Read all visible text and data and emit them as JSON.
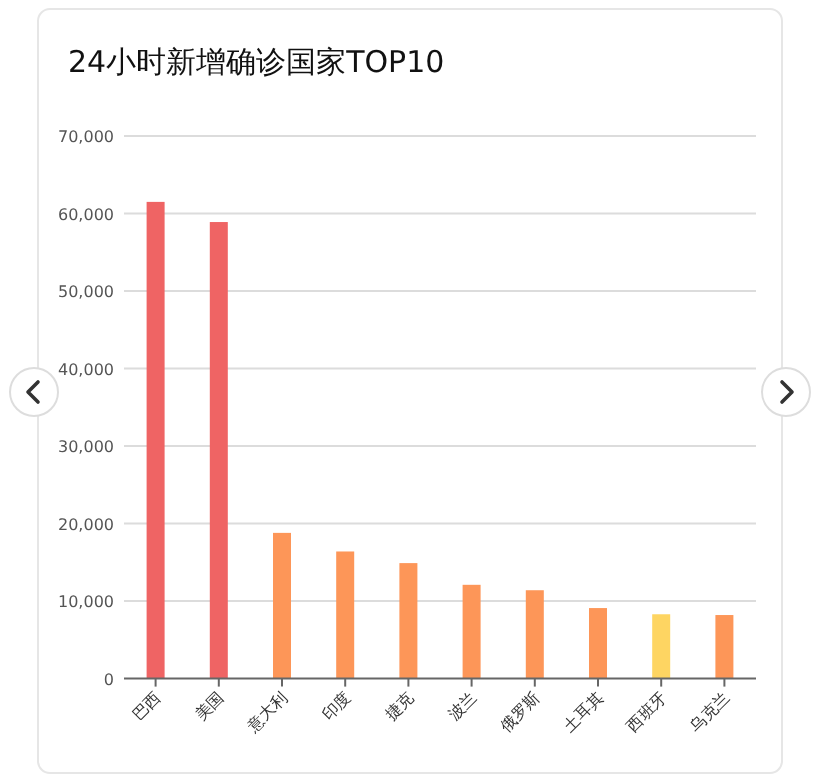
{
  "chart_data": {
    "type": "bar",
    "title": "24小时新增确诊国家TOP10",
    "categories": [
      "巴西",
      "美国",
      "意大利",
      "印度",
      "捷克",
      "波兰",
      "俄罗斯",
      "土耳其",
      "西班牙",
      "乌克兰"
    ],
    "values": [
      61500,
      58900,
      18800,
      16400,
      14900,
      12100,
      11400,
      9100,
      8300,
      8200
    ],
    "colors": [
      "#ef6464",
      "#ef6464",
      "#fd9658",
      "#fd9658",
      "#fd9658",
      "#fd9658",
      "#fd9658",
      "#fd9658",
      "#fed562",
      "#fd9658"
    ],
    "ylim": [
      0,
      70000
    ],
    "yticks": [
      {
        "value": 0,
        "label": "0"
      },
      {
        "value": 10000,
        "label": "10,000"
      },
      {
        "value": 20000,
        "label": "20,000"
      },
      {
        "value": 30000,
        "label": "30,000"
      },
      {
        "value": 40000,
        "label": "40,000"
      },
      {
        "value": 50000,
        "label": "50,000"
      },
      {
        "value": 60000,
        "label": "60,000"
      },
      {
        "value": 70000,
        "label": "70,000"
      }
    ],
    "grid": "y"
  }
}
